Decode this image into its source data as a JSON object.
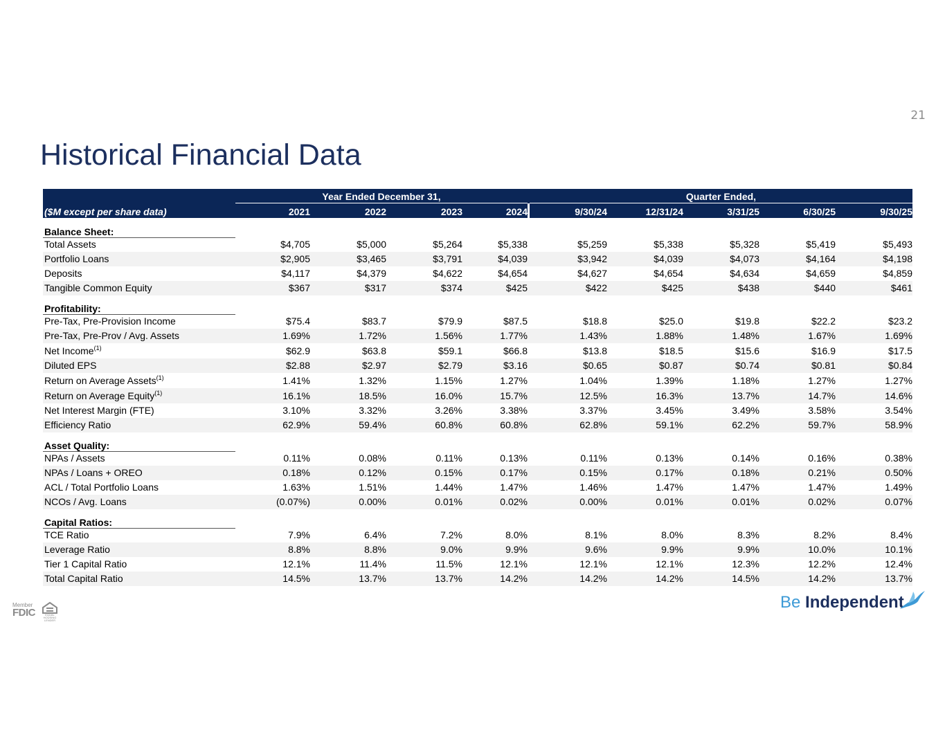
{
  "page_number": "21",
  "title": "Historical Financial Data",
  "table": {
    "group_headers": [
      "Year Ended December 31,",
      "Quarter Ended,"
    ],
    "columns_label": "($M except per share data)",
    "columns": [
      "2021",
      "2022",
      "2023",
      "2024",
      "9/30/24",
      "12/31/24",
      "3/31/25",
      "6/30/25",
      "9/30/25"
    ],
    "sections": [
      {
        "title": "Balance Sheet:",
        "rows": [
          {
            "label": "Total Assets",
            "values": [
              "$4,705",
              "$5,000",
              "$5,264",
              "$5,338",
              "$5,259",
              "$5,338",
              "$5,328",
              "$5,419",
              "$5,493"
            ]
          },
          {
            "label": "Portfolio Loans",
            "values": [
              "$2,905",
              "$3,465",
              "$3,791",
              "$4,039",
              "$3,942",
              "$4,039",
              "$4,073",
              "$4,164",
              "$4,198"
            ]
          },
          {
            "label": "Deposits",
            "values": [
              "$4,117",
              "$4,379",
              "$4,622",
              "$4,654",
              "$4,627",
              "$4,654",
              "$4,634",
              "$4,659",
              "$4,859"
            ]
          },
          {
            "label": "Tangible Common Equity",
            "values": [
              "$367",
              "$317",
              "$374",
              "$425",
              "$422",
              "$425",
              "$438",
              "$440",
              "$461"
            ]
          }
        ]
      },
      {
        "title": "Profitability:",
        "rows": [
          {
            "label": "Pre-Tax, Pre-Provision Income",
            "values": [
              "$75.4",
              "$83.7",
              "$79.9",
              "$87.5",
              "$18.8",
              "$25.0",
              "$19.8",
              "$22.2",
              "$23.2"
            ]
          },
          {
            "label": "Pre-Tax, Pre-Prov / Avg. Assets",
            "values": [
              "1.69%",
              "1.72%",
              "1.56%",
              "1.77%",
              "1.43%",
              "1.88%",
              "1.48%",
              "1.67%",
              "1.69%"
            ]
          },
          {
            "label": "Net Income",
            "note": "(1)",
            "values": [
              "$62.9",
              "$63.8",
              "$59.1",
              "$66.8",
              "$13.8",
              "$18.5",
              "$15.6",
              "$16.9",
              "$17.5"
            ]
          },
          {
            "label": "Diluted EPS",
            "values": [
              "$2.88",
              "$2.97",
              "$2.79",
              "$3.16",
              "$0.65",
              "$0.87",
              "$0.74",
              "$0.81",
              "$0.84"
            ]
          },
          {
            "label": "Return on Average Assets",
            "note": "(1)",
            "values": [
              "1.41%",
              "1.32%",
              "1.15%",
              "1.27%",
              "1.04%",
              "1.39%",
              "1.18%",
              "1.27%",
              "1.27%"
            ]
          },
          {
            "label": "Return on Average Equity",
            "note": "(1)",
            "values": [
              "16.1%",
              "18.5%",
              "16.0%",
              "15.7%",
              "12.5%",
              "16.3%",
              "13.7%",
              "14.7%",
              "14.6%"
            ]
          },
          {
            "label": "Net Interest Margin (FTE)",
            "values": [
              "3.10%",
              "3.32%",
              "3.26%",
              "3.38%",
              "3.37%",
              "3.45%",
              "3.49%",
              "3.58%",
              "3.54%"
            ]
          },
          {
            "label": "Efficiency Ratio",
            "values": [
              "62.9%",
              "59.4%",
              "60.8%",
              "60.8%",
              "62.8%",
              "59.1%",
              "62.2%",
              "59.7%",
              "58.9%"
            ]
          }
        ]
      },
      {
        "title": "Asset Quality:",
        "rows": [
          {
            "label": "NPAs / Assets",
            "values": [
              "0.11%",
              "0.08%",
              "0.11%",
              "0.13%",
              "0.11%",
              "0.13%",
              "0.14%",
              "0.16%",
              "0.38%"
            ]
          },
          {
            "label": "NPAs / Loans + OREO",
            "values": [
              "0.18%",
              "0.12%",
              "0.15%",
              "0.17%",
              "0.15%",
              "0.17%",
              "0.18%",
              "0.21%",
              "0.50%"
            ]
          },
          {
            "label": "ACL / Total Portfolio Loans",
            "values": [
              "1.63%",
              "1.51%",
              "1.44%",
              "1.47%",
              "1.46%",
              "1.47%",
              "1.47%",
              "1.47%",
              "1.49%"
            ]
          },
          {
            "label": "NCOs / Avg. Loans",
            "values": [
              "(0.07%)",
              "0.00%",
              "0.01%",
              "0.02%",
              "0.00%",
              "0.01%",
              "0.01%",
              "0.02%",
              "0.07%"
            ]
          }
        ]
      },
      {
        "title": "Capital Ratios:",
        "rows": [
          {
            "label": "TCE Ratio",
            "values": [
              "7.9%",
              "6.4%",
              "7.2%",
              "8.0%",
              "8.1%",
              "8.0%",
              "8.3%",
              "8.2%",
              "8.4%"
            ]
          },
          {
            "label": "Leverage Ratio",
            "values": [
              "8.8%",
              "8.8%",
              "9.0%",
              "9.9%",
              "9.6%",
              "9.9%",
              "9.9%",
              "10.0%",
              "10.1%"
            ]
          },
          {
            "label": "Tier 1 Capital Ratio",
            "values": [
              "12.1%",
              "11.4%",
              "11.5%",
              "12.1%",
              "12.1%",
              "12.1%",
              "12.3%",
              "12.2%",
              "12.4%"
            ]
          },
          {
            "label": "Total Capital Ratio",
            "values": [
              "14.5%",
              "13.7%",
              "13.7%",
              "14.2%",
              "14.2%",
              "14.2%",
              "14.5%",
              "14.2%",
              "13.7%"
            ]
          }
        ]
      }
    ]
  },
  "footer": {
    "member": "Member",
    "fdic": "FDIC",
    "lender": "EQUAL HOUSING LENDER",
    "brand_light": "Be",
    "brand_bold": "Independent"
  }
}
